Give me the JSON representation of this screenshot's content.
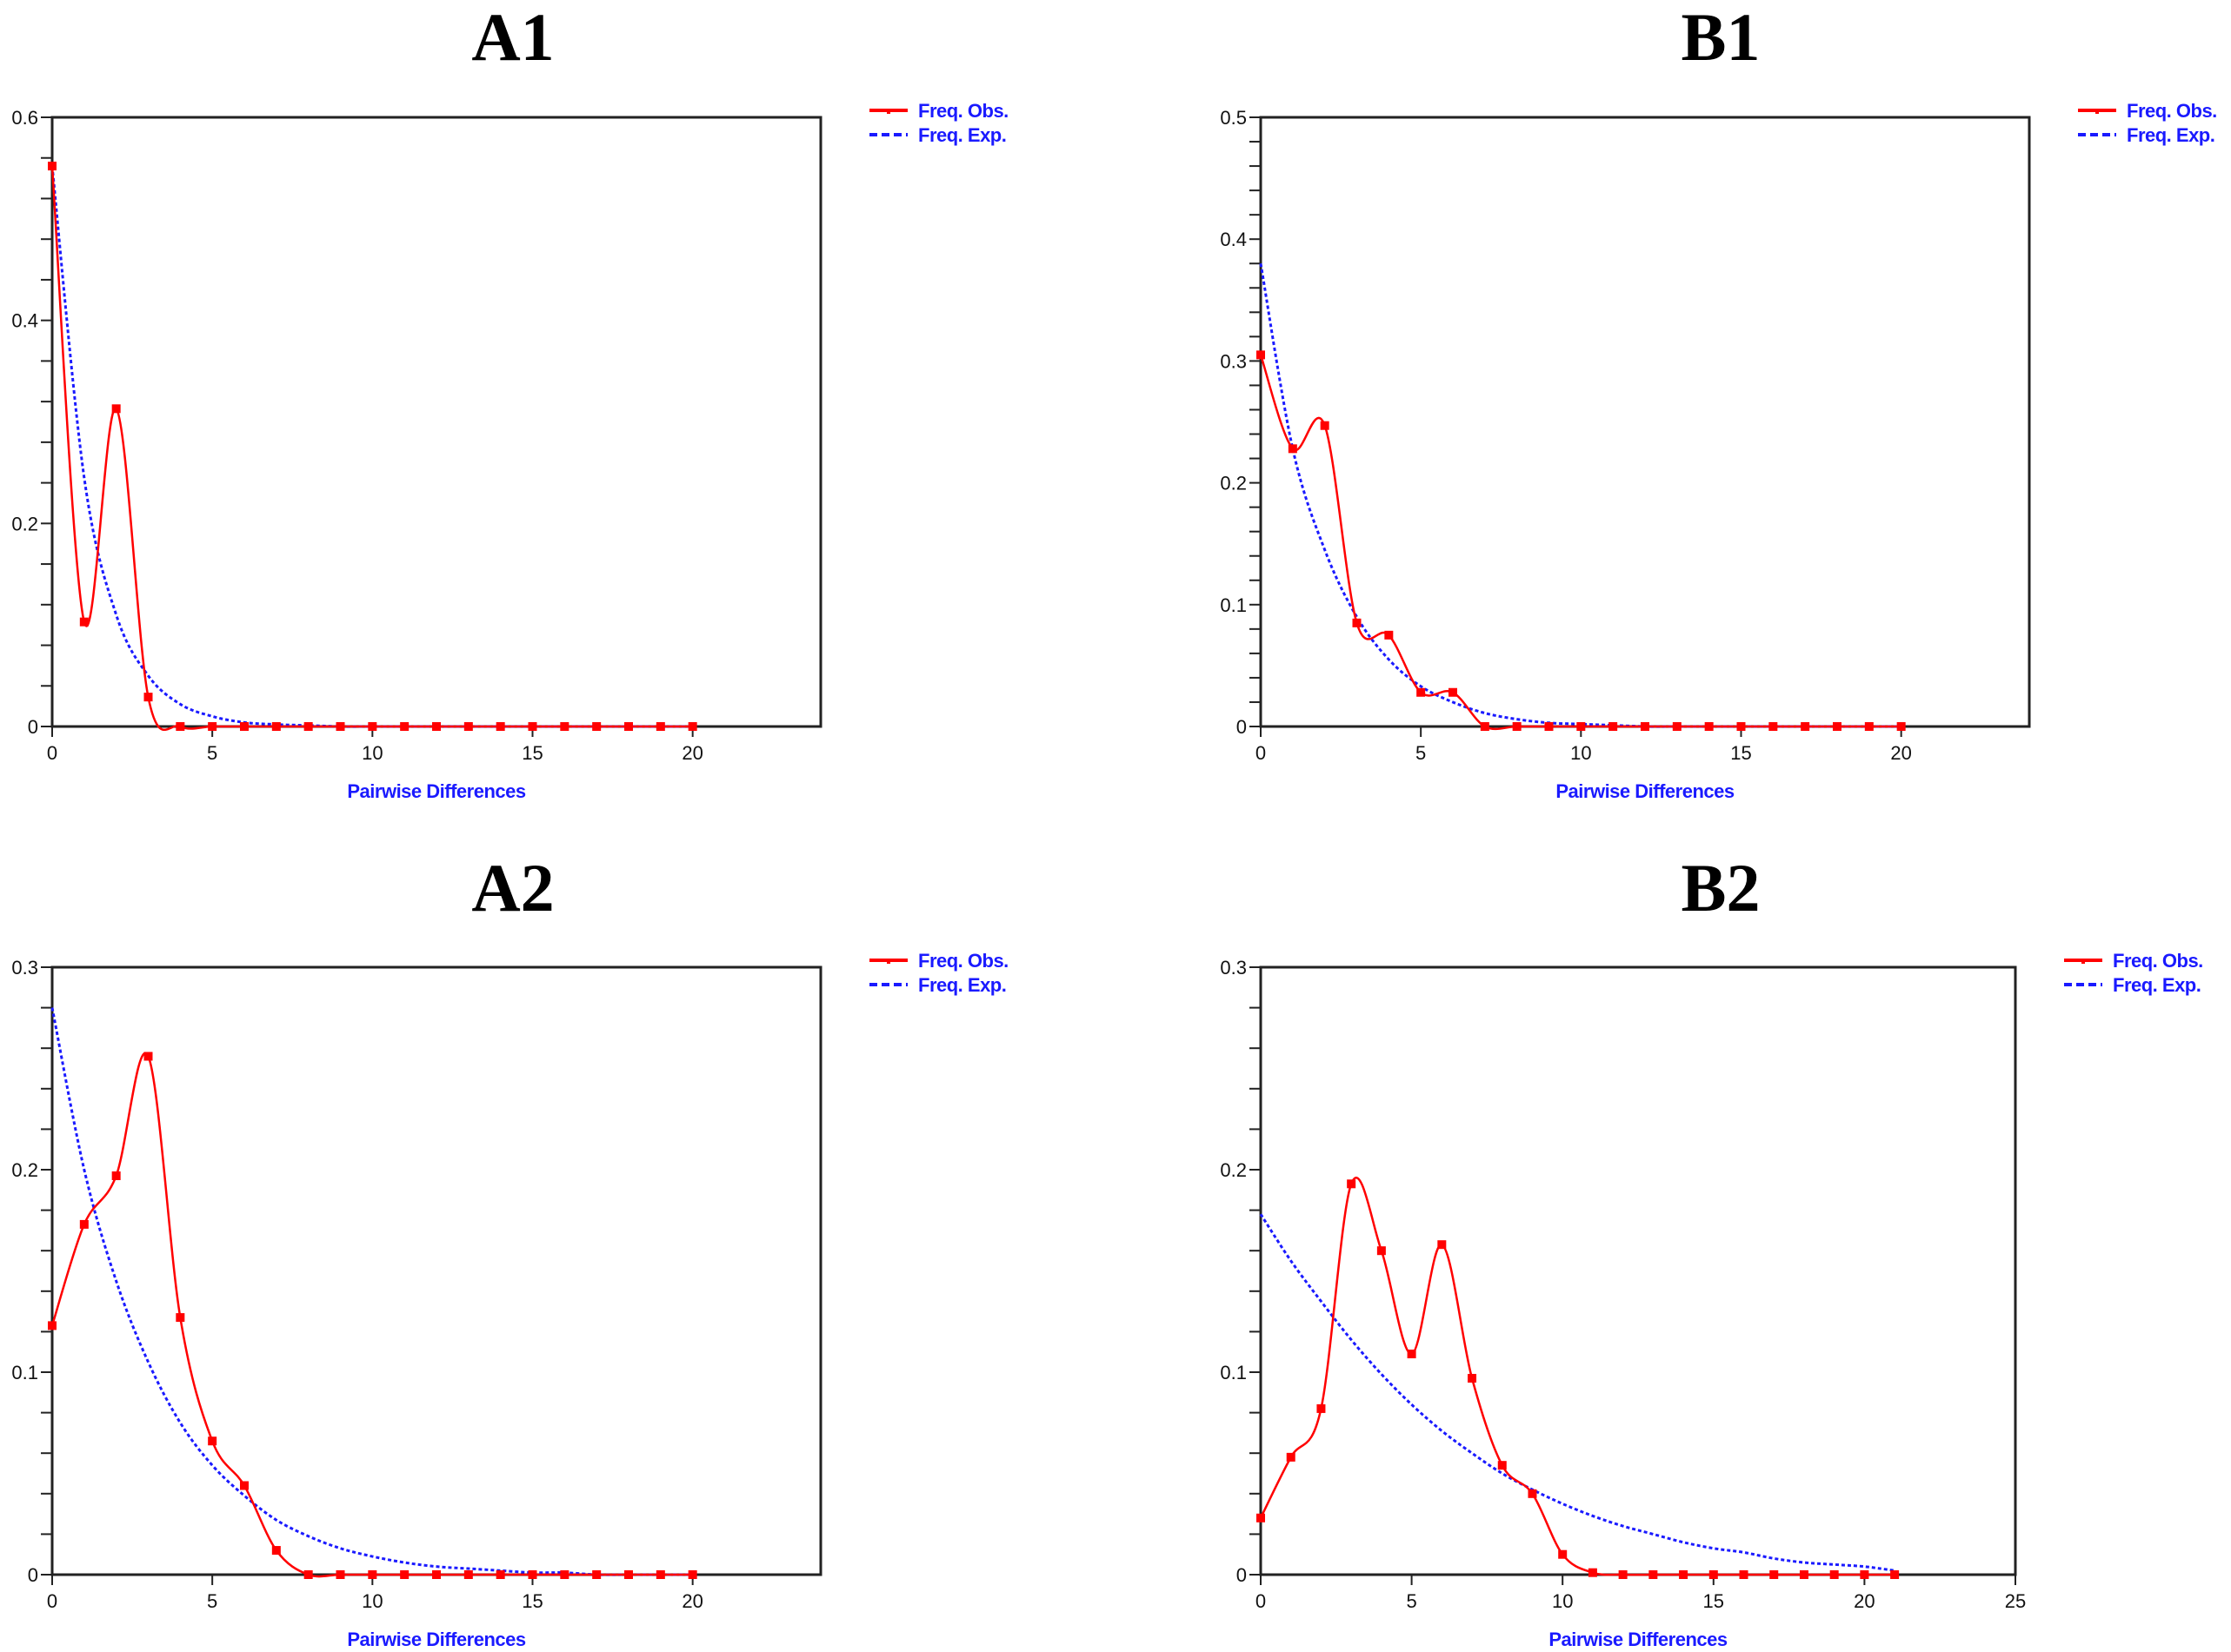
{
  "figure": {
    "legend": {
      "observed_label": "Freq. Obs.",
      "expected_label": "Freq. Exp."
    },
    "colors": {
      "observed": "#ff0000",
      "expected": "#1a1aff",
      "axis": "#000000",
      "label": "#1a1aff"
    }
  },
  "chart_data": [
    {
      "id": "A1",
      "type": "line",
      "title": "A1",
      "xlabel": "Pairwise Differences",
      "ylabel": "",
      "xlim": [
        0,
        24
      ],
      "ylim": [
        0,
        0.6
      ],
      "xticks": [
        0,
        5,
        10,
        15,
        20
      ],
      "yticks": [
        0,
        0.2,
        0.4,
        0.6
      ],
      "y_tick_labels": [
        "0",
        "0.2",
        "0.4",
        "0.6"
      ],
      "y_minor_step": 0.04,
      "legend_position": "upper right outside",
      "grid": false,
      "series": [
        {
          "name": "Freq. Obs.",
          "style": "solid-smooth-markers",
          "x": [
            0,
            1,
            2,
            3,
            4,
            5,
            6,
            7,
            8,
            9,
            10,
            11,
            12,
            13,
            14,
            15,
            16,
            17,
            18,
            19,
            20
          ],
          "values": [
            0.552,
            0.103,
            0.313,
            0.029,
            0,
            0,
            0,
            0,
            0,
            0,
            0,
            0,
            0,
            0,
            0,
            0,
            0,
            0,
            0,
            0,
            0
          ]
        },
        {
          "name": "Freq. Exp.",
          "style": "dashed",
          "x": [
            0,
            1,
            2,
            3,
            4,
            5,
            6,
            7,
            8,
            9,
            10,
            11,
            12,
            13,
            14,
            15,
            16,
            17,
            18,
            19,
            20
          ],
          "values": [
            0.552,
            0.245,
            0.11,
            0.05,
            0.022,
            0.01,
            0.004,
            0.002,
            0.001,
            0,
            0,
            0,
            0,
            0,
            0,
            0,
            0,
            0,
            0,
            0,
            0
          ]
        }
      ]
    },
    {
      "id": "B1",
      "type": "line",
      "title": "B1",
      "xlabel": "Pairwise Differences",
      "ylabel": "",
      "xlim": [
        0,
        24
      ],
      "ylim": [
        0,
        0.5
      ],
      "xticks": [
        0,
        5,
        10,
        15,
        20
      ],
      "yticks": [
        0,
        0.1,
        0.2,
        0.3,
        0.4,
        0.5
      ],
      "y_tick_labels": [
        "0",
        "0.1",
        "0.2",
        "0.3",
        "0.4",
        "0.5"
      ],
      "y_minor_step": 0.02,
      "legend_position": "upper right outside",
      "grid": false,
      "series": [
        {
          "name": "Freq. Obs.",
          "style": "solid-smooth-markers",
          "x": [
            0,
            1,
            2,
            3,
            4,
            5,
            6,
            7,
            8,
            9,
            10,
            11,
            12,
            13,
            14,
            15,
            16,
            17,
            18,
            19,
            20
          ],
          "values": [
            0.305,
            0.228,
            0.247,
            0.085,
            0.075,
            0.028,
            0.028,
            0,
            0,
            0,
            0,
            0,
            0,
            0,
            0,
            0,
            0,
            0,
            0,
            0,
            0
          ]
        },
        {
          "name": "Freq. Exp.",
          "style": "dashed",
          "x": [
            0,
            1,
            2,
            3,
            4,
            5,
            6,
            7,
            8,
            9,
            10,
            11,
            12,
            13,
            14,
            15,
            16,
            17,
            18,
            19,
            20
          ],
          "values": [
            0.38,
            0.228,
            0.145,
            0.09,
            0.055,
            0.033,
            0.02,
            0.011,
            0.006,
            0.003,
            0.002,
            0.001,
            0,
            0,
            0,
            0,
            0,
            0,
            0,
            0,
            0
          ]
        }
      ]
    },
    {
      "id": "A2",
      "type": "line",
      "title": "A2",
      "xlabel": "Pairwise Differences",
      "ylabel": "",
      "xlim": [
        0,
        24
      ],
      "ylim": [
        0,
        0.3
      ],
      "xticks": [
        0,
        5,
        10,
        15,
        20
      ],
      "yticks": [
        0,
        0.1,
        0.2,
        0.3
      ],
      "y_tick_labels": [
        "0",
        "0.1",
        "0.2",
        "0.3"
      ],
      "y_minor_step": 0.02,
      "legend_position": "upper right outside",
      "grid": false,
      "series": [
        {
          "name": "Freq. Obs.",
          "style": "solid-smooth-markers",
          "x": [
            0,
            1,
            2,
            3,
            4,
            5,
            6,
            7,
            8,
            9,
            10,
            11,
            12,
            13,
            14,
            15,
            16,
            17,
            18,
            19,
            20
          ],
          "values": [
            0.123,
            0.173,
            0.197,
            0.256,
            0.127,
            0.066,
            0.044,
            0.012,
            0,
            0,
            0,
            0,
            0,
            0,
            0,
            0,
            0,
            0,
            0,
            0,
            0
          ]
        },
        {
          "name": "Freq. Exp.",
          "style": "dashed",
          "x": [
            0,
            1,
            2,
            3,
            4,
            5,
            6,
            7,
            8,
            9,
            10,
            11,
            12,
            13,
            14,
            15,
            16,
            17,
            18,
            19,
            20
          ],
          "values": [
            0.28,
            0.2,
            0.145,
            0.105,
            0.075,
            0.054,
            0.039,
            0.027,
            0.019,
            0.013,
            0.009,
            0.006,
            0.004,
            0.003,
            0.002,
            0.001,
            0.001,
            0,
            0,
            0,
            0
          ]
        }
      ]
    },
    {
      "id": "B2",
      "type": "line",
      "title": "B2",
      "xlabel": "Pairwise Differences",
      "ylabel": "",
      "xlim": [
        0,
        25
      ],
      "ylim": [
        0,
        0.3
      ],
      "xticks": [
        0,
        5,
        10,
        15,
        20,
        25
      ],
      "yticks": [
        0,
        0.1,
        0.2,
        0.3
      ],
      "y_tick_labels": [
        "0",
        "0.1",
        "0.2",
        "0.3"
      ],
      "y_minor_step": 0.02,
      "legend_position": "upper right outside",
      "grid": false,
      "series": [
        {
          "name": "Freq. Obs.",
          "style": "solid-smooth-markers",
          "x": [
            0,
            1,
            2,
            3,
            4,
            5,
            6,
            7,
            8,
            9,
            10,
            11,
            12,
            13,
            14,
            15,
            16,
            17,
            18,
            19,
            20,
            21
          ],
          "values": [
            0.028,
            0.058,
            0.082,
            0.193,
            0.16,
            0.109,
            0.163,
            0.097,
            0.054,
            0.04,
            0.01,
            0.001,
            0,
            0,
            0,
            0,
            0,
            0,
            0,
            0,
            0,
            0
          ]
        },
        {
          "name": "Freq. Exp.",
          "style": "dashed",
          "x": [
            0,
            1,
            2,
            3,
            4,
            5,
            6,
            7,
            8,
            9,
            10,
            11,
            12,
            13,
            14,
            15,
            16,
            17,
            18,
            19,
            20,
            21
          ],
          "values": [
            0.178,
            0.155,
            0.135,
            0.116,
            0.099,
            0.084,
            0.071,
            0.06,
            0.05,
            0.042,
            0.035,
            0.029,
            0.024,
            0.02,
            0.016,
            0.013,
            0.011,
            0.008,
            0.006,
            0.005,
            0.004,
            0.002
          ]
        }
      ]
    }
  ]
}
